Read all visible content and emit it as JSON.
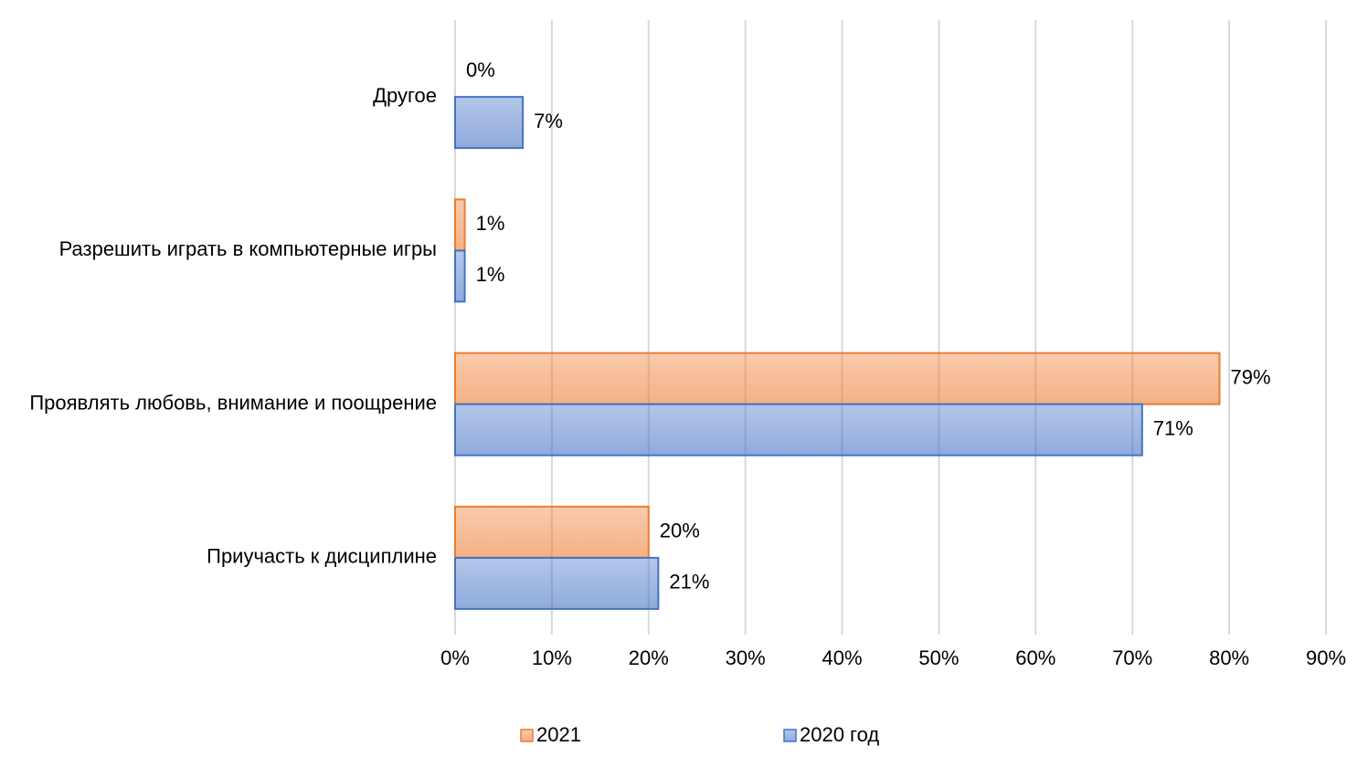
{
  "chart_data": {
    "type": "hbar",
    "categories": [
      "Другое",
      "Разрешить играть в компьютерные игры",
      "Проявлять любовь, внимание и поощрение",
      "Приучасть к дисциплине"
    ],
    "series": [
      {
        "name": "2021",
        "color": "#ed7d31",
        "values": [
          0,
          1,
          79,
          20
        ],
        "value_labels": [
          "0%",
          "1%",
          "79%",
          "20%"
        ]
      },
      {
        "name": "2020 год",
        "color": "#4472c4",
        "values": [
          7,
          1,
          71,
          21
        ],
        "value_labels": [
          "7%",
          "1%",
          "71%",
          "21%"
        ]
      }
    ],
    "xlim": [
      0,
      90
    ],
    "xticks": [
      {
        "value": 0,
        "label": "0%"
      },
      {
        "value": 10,
        "label": "10%"
      },
      {
        "value": 20,
        "label": "20%"
      },
      {
        "value": 30,
        "label": "30%"
      },
      {
        "value": 40,
        "label": "40%"
      },
      {
        "value": 50,
        "label": "50%"
      },
      {
        "value": 60,
        "label": "60%"
      },
      {
        "value": 70,
        "label": "70%"
      },
      {
        "value": 80,
        "label": "80%"
      },
      {
        "value": 90,
        "label": "90%"
      }
    ],
    "grid": true,
    "legend": "bottom"
  }
}
